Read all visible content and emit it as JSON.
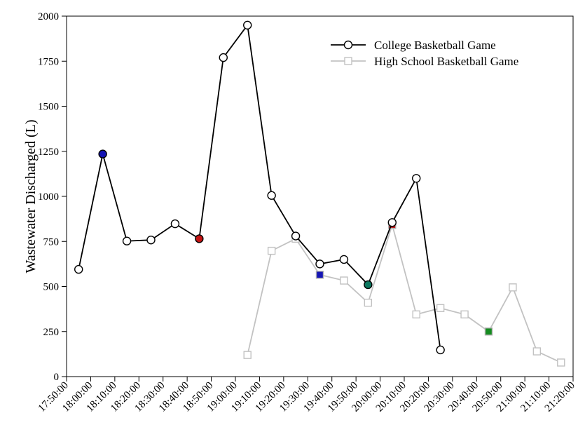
{
  "chart_data": {
    "type": "line",
    "title": "",
    "xlabel": "",
    "ylabel": "Wastewater Discharged (L)",
    "ylim": [
      0,
      2000
    ],
    "yticks": [
      0,
      250,
      500,
      750,
      1000,
      1250,
      1500,
      1750,
      2000
    ],
    "xticks": [
      "17:50:00",
      "18:00:00",
      "18:10:00",
      "18:20:00",
      "18:30:00",
      "18:40:00",
      "18:50:00",
      "19:00:00",
      "19:10:00",
      "19:20:00",
      "19:30:00",
      "19:40:00",
      "19:50:00",
      "20:00:00",
      "20:10:00",
      "20:20:00",
      "20:30:00",
      "20:40:00",
      "20:50:00",
      "21:00:00",
      "21:10:00",
      "21:20:00"
    ],
    "xlim": [
      "17:50:00",
      "21:20:00"
    ],
    "grid": false,
    "legend_position": "top-right",
    "series": [
      {
        "name": "College Basketball Game",
        "color": "#000000",
        "marker": "circle",
        "x": [
          "17:55:00",
          "18:05:00",
          "18:15:00",
          "18:25:00",
          "18:35:00",
          "18:45:00",
          "18:55:00",
          "19:05:00",
          "19:15:00",
          "19:25:00",
          "19:35:00",
          "19:45:00",
          "19:55:00",
          "20:05:00",
          "20:15:00",
          "20:25:00"
        ],
        "y": [
          595,
          1235,
          752,
          758,
          848,
          765,
          1770,
          1950,
          1005,
          780,
          625,
          650,
          510,
          855,
          1100,
          148
        ],
        "highlights": [
          {
            "x": "18:05:00",
            "color": "#1515b4"
          },
          {
            "x": "18:45:00",
            "color": "#c41414"
          },
          {
            "x": "19:55:00",
            "color": "#0c7860"
          }
        ]
      },
      {
        "name": "High School Basketball Game",
        "color": "#c2c2c2",
        "marker": "square",
        "x": [
          "19:05:00",
          "19:15:00",
          "19:25:00",
          "19:35:00",
          "19:45:00",
          "19:55:00",
          "20:05:00",
          "20:15:00",
          "20:25:00",
          "20:35:00",
          "20:45:00",
          "20:55:00",
          "21:05:00",
          "21:15:00"
        ],
        "y": [
          120,
          698,
          765,
          565,
          533,
          410,
          842,
          345,
          380,
          345,
          250,
          495,
          140,
          78
        ],
        "highlights": [
          {
            "x": "19:35:00",
            "color": "#1515b4"
          },
          {
            "x": "20:05:00",
            "color": "#c41414"
          },
          {
            "x": "20:45:00",
            "color": "#158c20"
          }
        ]
      }
    ]
  }
}
